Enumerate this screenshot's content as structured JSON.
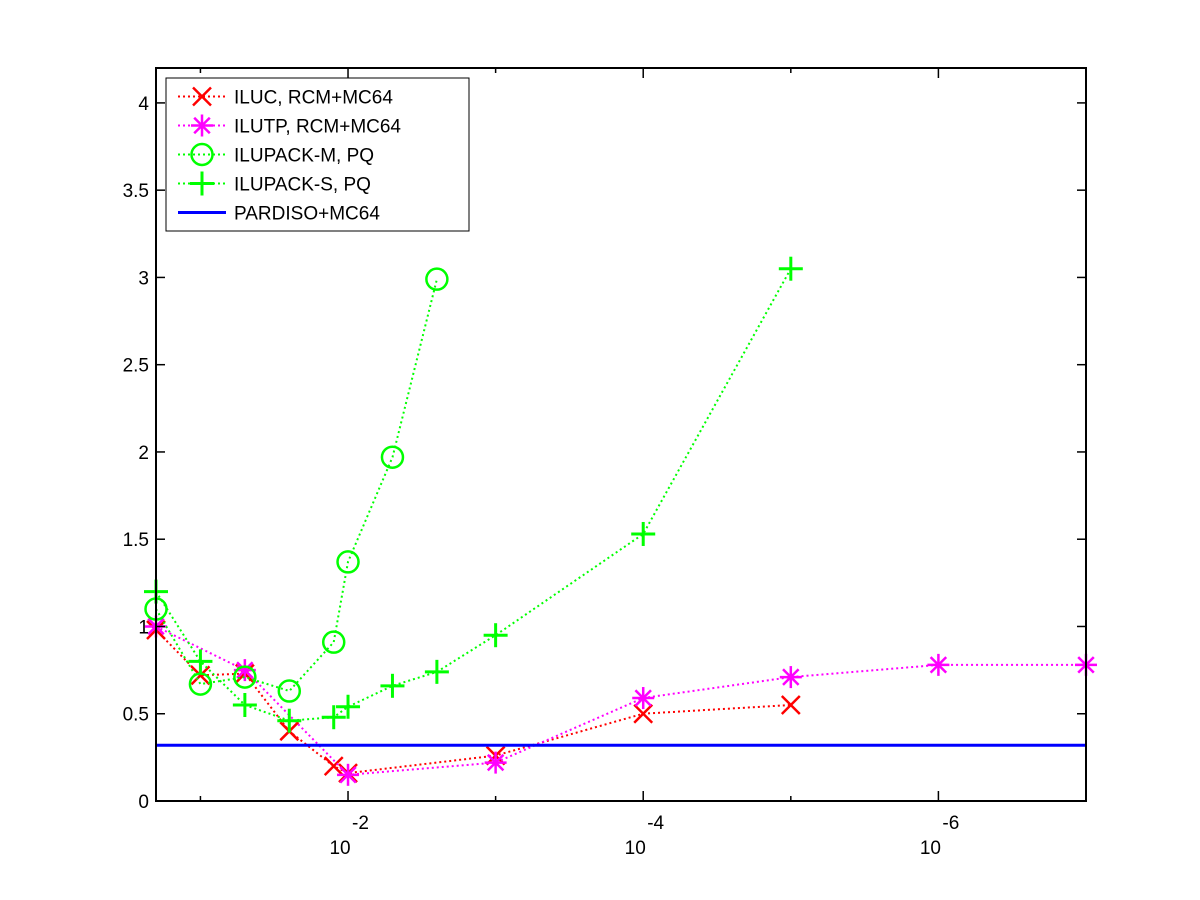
{
  "chart_data": {
    "type": "line",
    "xscale": "log",
    "x_reversed": true,
    "xlim": [
      0.2,
      1e-07
    ],
    "ylim": [
      0,
      4.2
    ],
    "xticks": [
      {
        "value": 0.01,
        "base": "10",
        "exponent": "-2"
      },
      {
        "value": 0.0001,
        "base": "10",
        "exponent": "-4"
      },
      {
        "value": 1e-06,
        "base": "10",
        "exponent": "-6"
      }
    ],
    "yticks": [
      {
        "value": 0,
        "label": "0"
      },
      {
        "value": 0.5,
        "label": "0.5"
      },
      {
        "value": 1,
        "label": "1"
      },
      {
        "value": 1.5,
        "label": "1.5"
      },
      {
        "value": 2,
        "label": "2"
      },
      {
        "value": 2.5,
        "label": "2.5"
      },
      {
        "value": 3,
        "label": "3"
      },
      {
        "value": 3.5,
        "label": "3.5"
      },
      {
        "value": 4,
        "label": "4"
      }
    ],
    "legend_position": "top-left",
    "series": [
      {
        "name": "ILUC, RCM+MC64",
        "color": "#ff0000",
        "marker": "x",
        "line": "dotted",
        "points": [
          [
            0.2,
            0.98
          ],
          [
            0.1,
            0.72
          ],
          [
            0.05,
            0.73
          ],
          [
            0.025,
            0.4
          ],
          [
            0.0125,
            0.2
          ],
          [
            0.01,
            0.16
          ],
          [
            0.001,
            0.26
          ],
          [
            0.0001,
            0.5
          ],
          [
            1e-05,
            0.55
          ]
        ]
      },
      {
        "name": "ILUTP, RCM+MC64",
        "color": "#ff00ff",
        "marker": "asterisk",
        "line": "dotted",
        "points": [
          [
            0.2,
            1.0
          ],
          [
            0.05,
            0.75
          ],
          [
            0.01,
            0.15
          ],
          [
            0.001,
            0.22
          ],
          [
            0.0001,
            0.59
          ],
          [
            1e-05,
            0.71
          ],
          [
            1e-06,
            0.78
          ],
          [
            1e-07,
            0.78
          ]
        ]
      },
      {
        "name": "ILUPACK-M, PQ",
        "color": "#00ff00",
        "marker": "circle",
        "line": "dotted",
        "points": [
          [
            0.2,
            1.1
          ],
          [
            0.1,
            0.67
          ],
          [
            0.05,
            0.71
          ],
          [
            0.025,
            0.63
          ],
          [
            0.0125,
            0.91
          ],
          [
            0.01,
            1.37
          ],
          [
            0.005,
            1.97
          ],
          [
            0.0025,
            2.99
          ]
        ]
      },
      {
        "name": "ILUPACK-S, PQ",
        "color": "#00ff00",
        "marker": "plus",
        "line": "dotted",
        "points": [
          [
            0.2,
            1.2
          ],
          [
            0.1,
            0.8
          ],
          [
            0.05,
            0.55
          ],
          [
            0.025,
            0.46
          ],
          [
            0.0125,
            0.48
          ],
          [
            0.01,
            0.54
          ],
          [
            0.005,
            0.66
          ],
          [
            0.0025,
            0.74
          ],
          [
            0.001,
            0.95
          ],
          [
            0.0001,
            1.53
          ],
          [
            1e-05,
            3.05
          ]
        ]
      },
      {
        "name": "PARDISO+MC64",
        "color": "#0000ff",
        "marker": "none",
        "line": "solid",
        "points": [
          [
            0.2,
            0.32
          ],
          [
            1e-07,
            0.32
          ]
        ]
      }
    ]
  }
}
